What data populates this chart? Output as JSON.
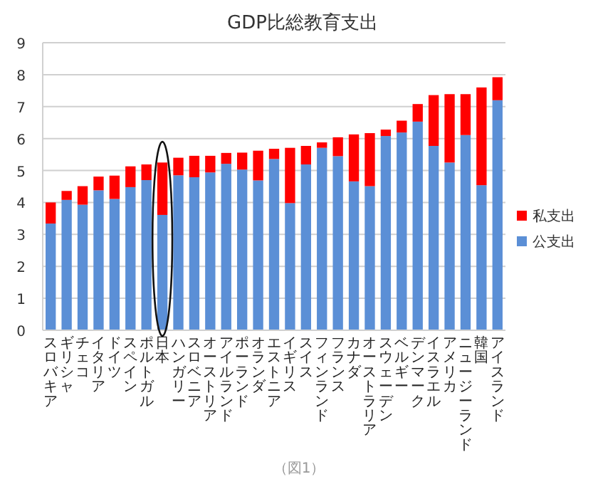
{
  "chart_data": {
    "type": "bar",
    "stacked": true,
    "title": "GDP比総教育支出",
    "categories": [
      "スロバキア",
      "ギリシャ",
      "チェコ",
      "イタリア",
      "ドイツ",
      "スペイン",
      "ポルトガル",
      "日本",
      "ハンガリー",
      "スロベニア",
      "オーストリア",
      "アイルランド",
      "ポーランド",
      "オランダ",
      "エストニア",
      "イギリス",
      "スイス",
      "フィンランド",
      "フランス",
      "カナダ",
      "オーストラリア",
      "スウェーデン",
      "ベルギー",
      "デンマーク",
      "イスラエル",
      "アメリカ",
      "ニュージーランド",
      "韓国",
      "アイスランド"
    ],
    "series": [
      {
        "name": "公支出",
        "color": "#5b8fd6",
        "values": [
          3.34,
          4.08,
          3.93,
          4.38,
          4.11,
          4.48,
          4.7,
          3.61,
          4.85,
          4.79,
          4.94,
          5.21,
          5.03,
          4.69,
          5.36,
          3.98,
          5.19,
          5.71,
          5.45,
          4.66,
          4.51,
          6.08,
          6.19,
          6.53,
          5.77,
          5.25,
          6.11,
          4.54,
          7.2
        ]
      },
      {
        "name": "私支出",
        "color": "#ff0000",
        "values": [
          0.66,
          0.28,
          0.58,
          0.43,
          0.73,
          0.65,
          0.49,
          1.64,
          0.55,
          0.67,
          0.52,
          0.34,
          0.53,
          0.93,
          0.32,
          1.73,
          0.58,
          0.17,
          0.59,
          1.47,
          1.66,
          0.2,
          0.37,
          0.55,
          1.59,
          2.14,
          1.28,
          3.06,
          0.72
        ]
      }
    ],
    "ylim": [
      0,
      9
    ],
    "yticks": [
      0,
      1,
      2,
      3,
      4,
      5,
      6,
      7,
      8,
      9
    ],
    "grid": "y",
    "legend": "right",
    "annotations": [
      "（図1）"
    ]
  }
}
